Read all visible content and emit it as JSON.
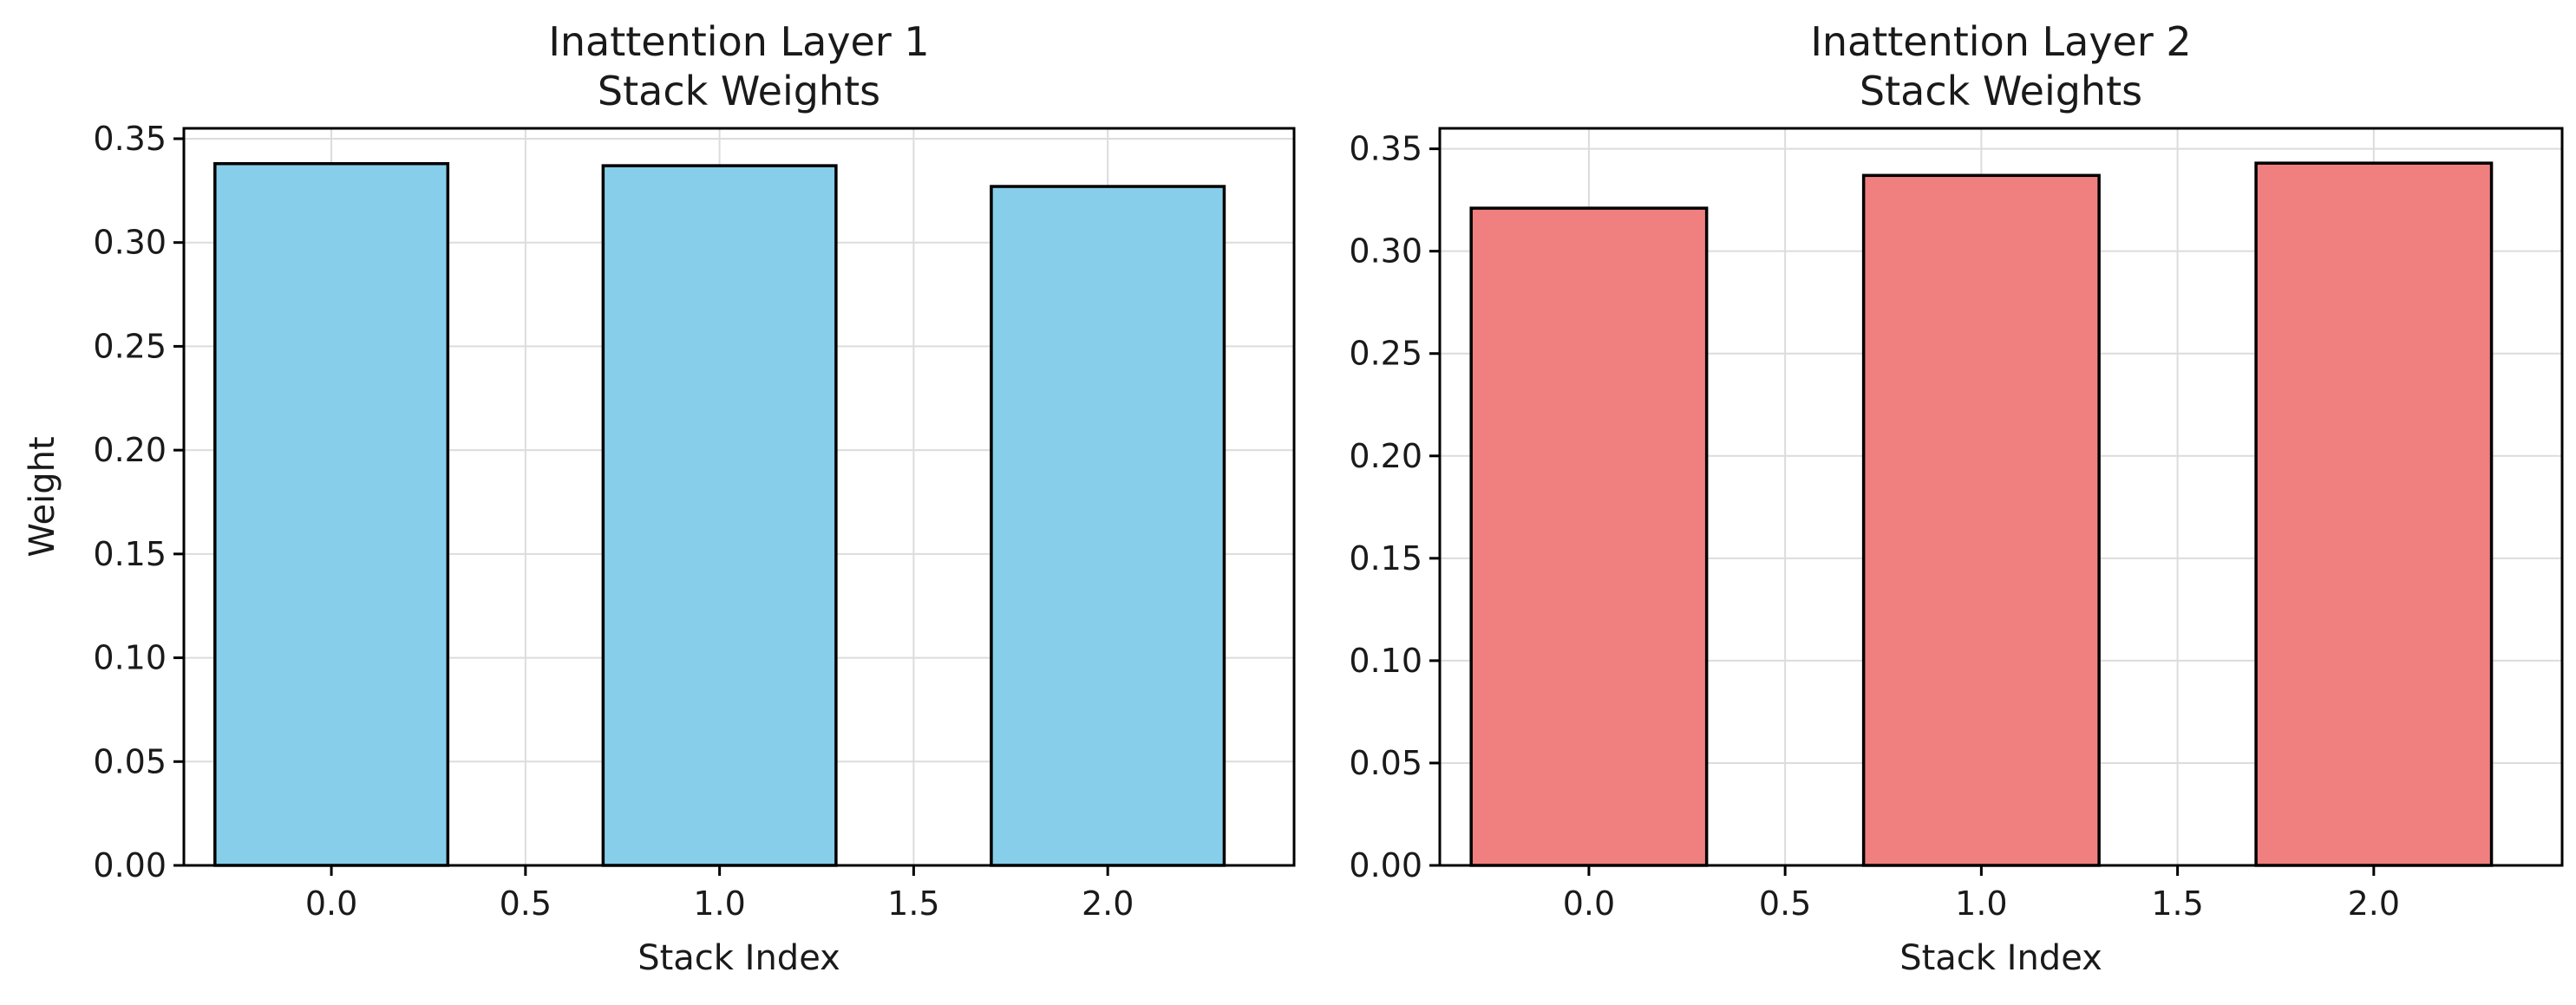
{
  "chart_data": [
    {
      "type": "bar",
      "title_line1": "Inattention Layer 1",
      "title_line2": "Stack Weights",
      "xlabel": "Stack Index",
      "ylabel": "Weight",
      "x": [
        0.0,
        1.0,
        2.0
      ],
      "values": [
        0.338,
        0.337,
        0.327
      ],
      "bar_width": 0.6,
      "xlim": [
        -0.38,
        2.48
      ],
      "ylim": [
        0.0,
        0.355
      ],
      "xticks": [
        0.0,
        0.5,
        1.0,
        1.5,
        2.0
      ],
      "xtick_labels": [
        "0.0",
        "0.5",
        "1.0",
        "1.5",
        "2.0"
      ],
      "yticks": [
        0.0,
        0.05,
        0.1,
        0.15,
        0.2,
        0.25,
        0.3,
        0.35
      ],
      "ytick_labels": [
        "0.00",
        "0.05",
        "0.10",
        "0.15",
        "0.20",
        "0.25",
        "0.30",
        "0.35"
      ],
      "grid": true,
      "bar_color": "#87CEEB",
      "edge_color": "#000000"
    },
    {
      "type": "bar",
      "title_line1": "Inattention Layer 2",
      "title_line2": "Stack Weights",
      "xlabel": "Stack Index",
      "ylabel": "",
      "x": [
        0.0,
        1.0,
        2.0
      ],
      "values": [
        0.321,
        0.337,
        0.343
      ],
      "bar_width": 0.6,
      "xlim": [
        -0.38,
        2.48
      ],
      "ylim": [
        0.0,
        0.36
      ],
      "xticks": [
        0.0,
        0.5,
        1.0,
        1.5,
        2.0
      ],
      "xtick_labels": [
        "0.0",
        "0.5",
        "1.0",
        "1.5",
        "2.0"
      ],
      "yticks": [
        0.0,
        0.05,
        0.1,
        0.15,
        0.2,
        0.25,
        0.3,
        0.35
      ],
      "ytick_labels": [
        "0.00",
        "0.05",
        "0.10",
        "0.15",
        "0.20",
        "0.25",
        "0.30",
        "0.35"
      ],
      "grid": true,
      "bar_color": "#F08080",
      "edge_color": "#000000"
    }
  ]
}
